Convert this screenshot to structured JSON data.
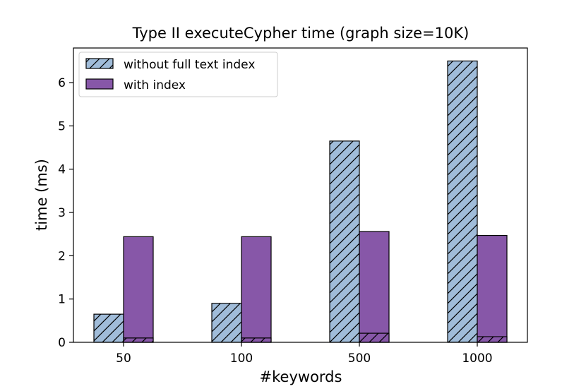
{
  "chart_data": {
    "type": "bar",
    "title": "Type II executeCypher time (graph size=10K)",
    "xlabel": "#keywords",
    "ylabel": "time (ms)",
    "categories": [
      "50",
      "100",
      "500",
      "1000"
    ],
    "ylim": [
      0,
      6.8
    ],
    "yticks": [
      "0",
      "1",
      "2",
      "3",
      "4",
      "5",
      "6"
    ],
    "legend_position": "top-left",
    "grid": false,
    "series": [
      {
        "name": "without full text index",
        "values": [
          0.65,
          0.9,
          4.65,
          6.5
        ],
        "color": "#a0bcd9",
        "hatch": "diagonal"
      },
      {
        "name": "with index",
        "values": [
          2.44,
          2.44,
          2.56,
          2.47
        ],
        "color": "#8757a8",
        "hatch": "none",
        "overlay_values": [
          0.1,
          0.1,
          0.21,
          0.13
        ],
        "overlay_color": "#8757a8",
        "overlay_hatch": "diagonal"
      }
    ]
  }
}
